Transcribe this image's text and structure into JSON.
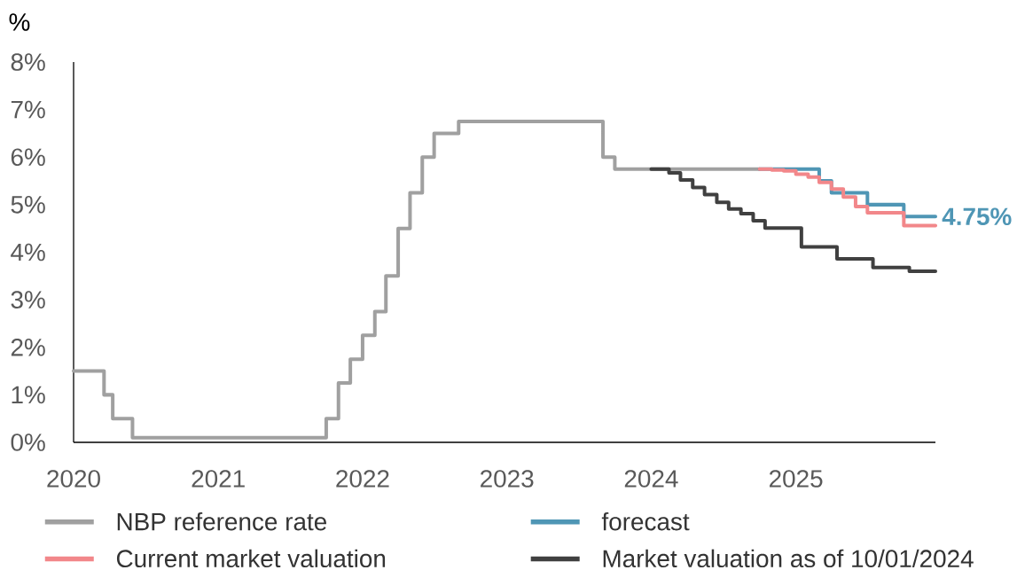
{
  "chart_data": {
    "type": "step",
    "ylabel": "%",
    "xlim": [
      "2020-01-01",
      "2025-12-20"
    ],
    "xticks": [
      {
        "value": "2020-01-01",
        "label": "2020"
      },
      {
        "value": "2021-01-01",
        "label": "2021"
      },
      {
        "value": "2022-01-01",
        "label": "2022"
      },
      {
        "value": "2023-01-01",
        "label": "2023"
      },
      {
        "value": "2024-01-01",
        "label": "2024"
      },
      {
        "value": "2025-01-01",
        "label": "2025"
      }
    ],
    "ylim": [
      0,
      8
    ],
    "yticks": [
      {
        "value": 0,
        "label": "0%"
      },
      {
        "value": 1,
        "label": "1%"
      },
      {
        "value": 2,
        "label": "2%"
      },
      {
        "value": 3,
        "label": "3%"
      },
      {
        "value": 4,
        "label": "4%"
      },
      {
        "value": 5,
        "label": "5%"
      },
      {
        "value": 6,
        "label": "6%"
      },
      {
        "value": 7,
        "label": "7%"
      },
      {
        "value": 8,
        "label": "8%"
      }
    ],
    "legend": "bottom",
    "series": [
      {
        "name": "NBP reference rate",
        "color": "#a0a0a0",
        "x": [
          "2020-01-01",
          "2020-03-18",
          "2020-04-09",
          "2020-05-29",
          "2021-10-01",
          "2021-11-01",
          "2021-12-01",
          "2022-01-01",
          "2022-02-01",
          "2022-03-01",
          "2022-04-01",
          "2022-05-01",
          "2022-06-01",
          "2022-07-01",
          "2022-09-01",
          "2023-09-01",
          "2023-10-01",
          "2024-10-01"
        ],
        "values": [
          1.5,
          1.0,
          0.5,
          0.1,
          0.5,
          1.25,
          1.75,
          2.25,
          2.75,
          3.5,
          4.5,
          5.25,
          6.0,
          6.5,
          6.75,
          6.0,
          5.75,
          5.75
        ]
      },
      {
        "name": "forecast",
        "color": "#4f96b5",
        "x": [
          "2024-10-01",
          "2025-03-01",
          "2025-04-01",
          "2025-07-01",
          "2025-10-01",
          "2025-12-20"
        ],
        "values": [
          5.75,
          5.5,
          5.25,
          5.0,
          4.75,
          4.75
        ],
        "value_labels": [
          null,
          null,
          null,
          null,
          null,
          "4.75%"
        ]
      },
      {
        "name": "Current market valuation",
        "color": "#f2878a",
        "x": [
          "2024-10-01",
          "2024-11-01",
          "2024-12-01",
          "2025-01-01",
          "2025-02-01",
          "2025-03-01",
          "2025-04-01",
          "2025-05-01",
          "2025-06-01",
          "2025-07-01",
          "2025-10-01",
          "2025-12-20"
        ],
        "values": [
          5.75,
          5.73,
          5.71,
          5.64,
          5.58,
          5.47,
          5.33,
          5.16,
          4.96,
          4.83,
          4.56,
          4.56
        ]
      },
      {
        "name": "Market valuation as of 10/01/2024",
        "color": "#404040",
        "x": [
          "2024-01-01",
          "2024-02-15",
          "2024-03-15",
          "2024-04-15",
          "2024-05-15",
          "2024-06-15",
          "2024-07-15",
          "2024-08-15",
          "2024-09-15",
          "2024-10-15",
          "2025-01-15",
          "2025-04-15",
          "2025-07-15",
          "2025-10-15",
          "2025-12-20"
        ],
        "values": [
          5.75,
          5.67,
          5.52,
          5.36,
          5.21,
          5.05,
          4.91,
          4.81,
          4.66,
          4.51,
          4.11,
          3.86,
          3.68,
          3.6,
          3.6
        ]
      }
    ]
  }
}
